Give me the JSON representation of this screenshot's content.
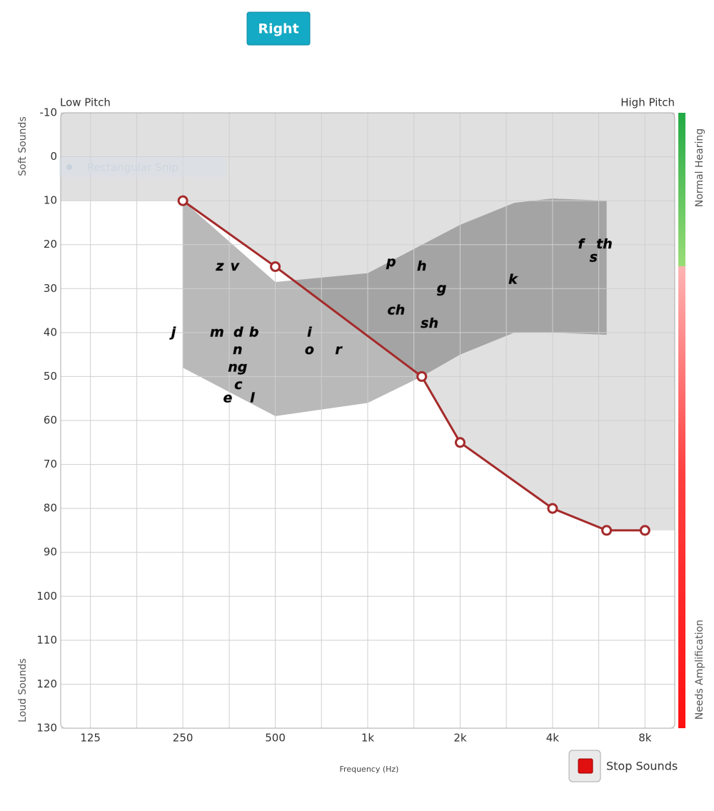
{
  "button": "Right",
  "snip_overlay": "Rectangular Snip",
  "stop_button": "Stop Sounds",
  "chart_data": {
    "type": "line",
    "x_label": "Frequency (Hz)",
    "low_pitch_label": "Low Pitch",
    "high_pitch_label": "High Pitch",
    "soft_label": "Soft Sounds",
    "loud_label": "Loud Sounds",
    "normal_label": "Normal Hearing",
    "amplify_label": "Needs Amplification",
    "log_x": true,
    "grid": true,
    "xlim": [
      100,
      10000
    ],
    "ylim": [
      -10,
      130
    ],
    "y_inverted": true,
    "xticks": [
      125,
      250,
      500,
      {
        "value": 1000,
        "label": "1k"
      },
      {
        "value": 2000,
        "label": "2k"
      },
      {
        "value": 4000,
        "label": "4k"
      },
      {
        "value": 8000,
        "label": "8k"
      }
    ],
    "xgrid_minor": [
      177,
      354,
      707,
      1414,
      2828,
      5657
    ],
    "yticks": [
      -10,
      0,
      10,
      20,
      30,
      40,
      50,
      60,
      70,
      80,
      90,
      100,
      110,
      120,
      130
    ],
    "x": [
      250,
      500,
      1500,
      2000,
      4000,
      6000,
      8000
    ],
    "series": [
      {
        "color": "#a52a2a",
        "values": [
          10,
          25,
          50,
          65,
          80,
          85,
          85
        ]
      }
    ],
    "hearing_area_color": "#e0e0e0",
    "speech_banana": {
      "color": "#b9b9b9",
      "heard_color": "#a4a4a4",
      "x": [
        250,
        500,
        1000,
        2000,
        3000,
        4000,
        6000,
        6000,
        4000,
        3000,
        2000,
        1500,
        1000,
        500,
        250
      ],
      "y": [
        10,
        28.5,
        26.5,
        15.5,
        10.5,
        9.5,
        10,
        40.5,
        40,
        40,
        45,
        50,
        56,
        59,
        48
      ]
    },
    "phonemes": [
      {
        "label": "j",
        "x": 233,
        "y": 40
      },
      {
        "label": "z",
        "x": 330,
        "y": 25
      },
      {
        "label": "v",
        "x": 369,
        "y": 25
      },
      {
        "label": "m",
        "x": 323,
        "y": 40
      },
      {
        "label": "d",
        "x": 379,
        "y": 40
      },
      {
        "label": "b",
        "x": 426,
        "y": 40
      },
      {
        "label": "n",
        "x": 377,
        "y": 44
      },
      {
        "label": "ng",
        "x": 377,
        "y": 48
      },
      {
        "label": "c",
        "x": 379,
        "y": 52
      },
      {
        "label": "e",
        "x": 350,
        "y": 55
      },
      {
        "label": "l",
        "x": 421,
        "y": 55
      },
      {
        "label": "i",
        "x": 646,
        "y": 40
      },
      {
        "label": "o",
        "x": 646,
        "y": 44
      },
      {
        "label": "r",
        "x": 803,
        "y": 44
      },
      {
        "label": "p",
        "x": 1192,
        "y": 24
      },
      {
        "label": "h",
        "x": 1500,
        "y": 25
      },
      {
        "label": "g",
        "x": 1741,
        "y": 30
      },
      {
        "label": "ch",
        "x": 1238,
        "y": 35
      },
      {
        "label": "sh",
        "x": 1590,
        "y": 38
      },
      {
        "label": "k",
        "x": 2970,
        "y": 28
      },
      {
        "label": "f",
        "x": 4950,
        "y": 20
      },
      {
        "label": "th",
        "x": 5900,
        "y": 20
      },
      {
        "label": "s",
        "x": 5440,
        "y": 23
      }
    ]
  }
}
